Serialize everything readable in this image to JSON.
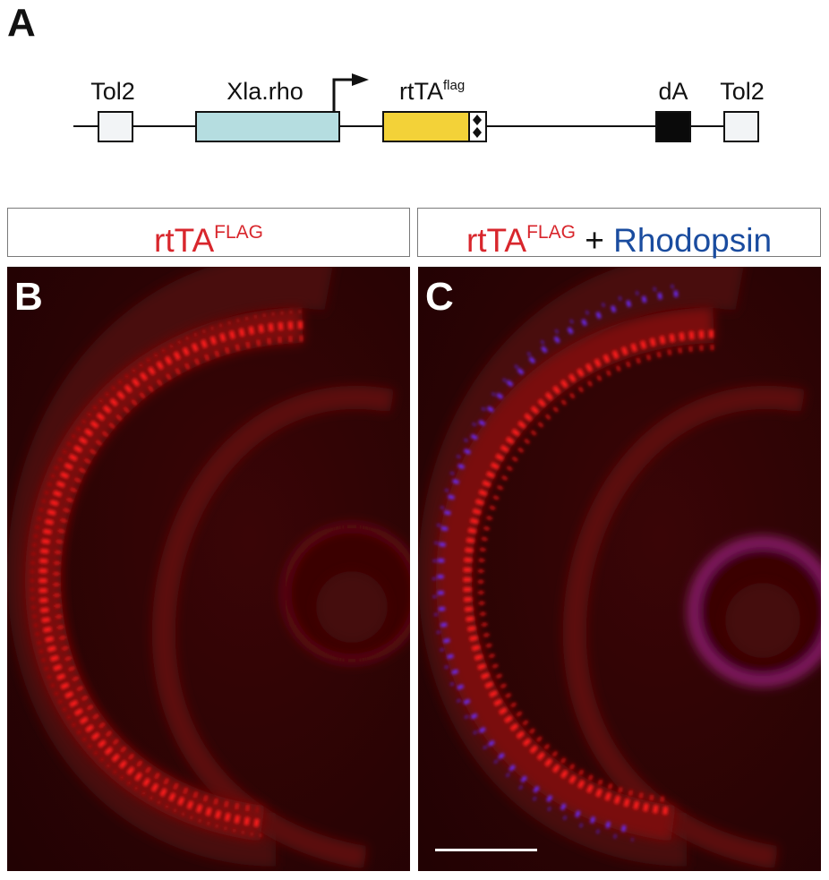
{
  "panel_a": {
    "letter": "A",
    "labels": {
      "tol2_left": "Tol2",
      "promoter": "Xla.rho",
      "gene_main": "rtTA",
      "gene_sup": "flag",
      "polya": "dA",
      "tol2_right": "Tol2"
    },
    "colors": {
      "tol2": "#f2f4f6",
      "promoter": "#b5dde0",
      "gene": "#f3d238",
      "polya": "#0a0a0a",
      "line": "#111111"
    }
  },
  "panel_b": {
    "letter": "B",
    "header_main": "rtTA",
    "header_sup": "FLAG"
  },
  "panel_c": {
    "letter": "C",
    "header_main": "rtTA",
    "header_sup": "FLAG",
    "header_plus": "+",
    "header_second": "Rhodopsin",
    "scale_bar": true
  },
  "colors": {
    "flag_red": "#d8262c",
    "rhodopsin_blue": "#1a4c9f",
    "micro_background": "#2b0304",
    "rtta_signal": "#ff1e1e",
    "rhodopsin_signal": "#6a2bff"
  }
}
